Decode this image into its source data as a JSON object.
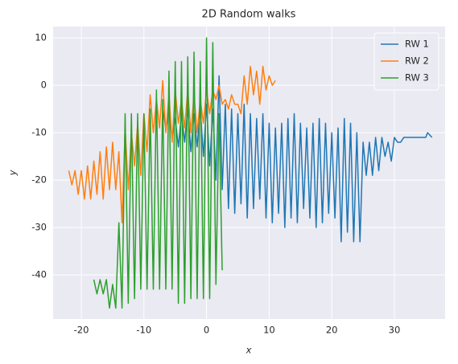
{
  "chart_data": {
    "type": "line",
    "title": "2D Random walks",
    "xlabel": "x",
    "ylabel": "y",
    "xlim": [
      -24.5,
      38.1
    ],
    "ylim": [
      -49.3,
      12.4
    ],
    "xticks": [
      -20,
      -10,
      0,
      10,
      20,
      30
    ],
    "yticks": [
      -40,
      -30,
      -20,
      -10,
      0,
      10
    ],
    "grid": true,
    "legend": "upper right",
    "series": [
      {
        "name": "RW 1",
        "color": "#1f77b4",
        "x": [
          -7,
          -6.5,
          -6,
          -5.5,
          -5,
          -4.5,
          -4,
          -3.5,
          -3,
          -2.5,
          -2,
          -1.5,
          -1,
          -0.5,
          0,
          0.5,
          1,
          1.5,
          2,
          2.5,
          3,
          3.5,
          4,
          4.5,
          5,
          5.5,
          6,
          6.5,
          7,
          7.5,
          8,
          8.5,
          9,
          9.5,
          10,
          10.5,
          11,
          11.5,
          12,
          12.5,
          13,
          13.5,
          14,
          14.5,
          15,
          15.5,
          16,
          16.5,
          17,
          17.5,
          18,
          18.5,
          19,
          19.5,
          20,
          20.5,
          21,
          21.5,
          22,
          22.5,
          23,
          23.5,
          24,
          24.5,
          25,
          25.5,
          26,
          26.5,
          27,
          27.5,
          28,
          28.5,
          29,
          29.5,
          30,
          30.5,
          31,
          31.5,
          32,
          33,
          34,
          35,
          35.3,
          36
        ],
        "values": [
          -5,
          -9,
          -6,
          -11,
          -7,
          -13,
          -6,
          -12,
          -5,
          -14,
          -6,
          -13,
          -5,
          -15,
          -4,
          -17,
          -5,
          -20,
          2,
          -22,
          -4,
          -26,
          -5,
          -27,
          -6,
          -25,
          -4,
          -28,
          -6,
          -26,
          -7,
          -24,
          -6,
          -28,
          -8,
          -29,
          -9,
          -27,
          -8,
          -30,
          -7,
          -28,
          -6,
          -29,
          -8,
          -26,
          -9,
          -28,
          -8,
          -30,
          -7,
          -29,
          -8,
          -27,
          -10,
          -28,
          -9,
          -33,
          -7,
          -31,
          -8,
          -33,
          -10,
          -33,
          -12,
          -19,
          -12,
          -19,
          -11,
          -18,
          -11,
          -15,
          -12,
          -16,
          -11,
          -12,
          -12,
          -11,
          -11,
          -11,
          -11,
          -11,
          -10,
          -11
        ]
      },
      {
        "name": "RW 2",
        "color": "#ff7f0e",
        "x": [
          -22,
          -21.5,
          -21,
          -20.5,
          -20,
          -19.5,
          -19,
          -18.5,
          -18,
          -17.5,
          -17,
          -16.5,
          -16,
          -15.5,
          -15,
          -14.5,
          -14,
          -13.5,
          -13,
          -12.5,
          -12,
          -11.5,
          -11,
          -10.5,
          -10,
          -9.5,
          -9,
          -8.5,
          -8,
          -7.5,
          -7,
          -6.5,
          -6,
          -5.5,
          -5,
          -4.5,
          -4,
          -3.5,
          -3,
          -2.5,
          -2,
          -1.5,
          -1,
          -0.5,
          0,
          0.5,
          1,
          1.5,
          2,
          2.5,
          3,
          3.5,
          4,
          4.5,
          5,
          5.5,
          6,
          6.5,
          7,
          7.5,
          8,
          8.5,
          9,
          9.5,
          10,
          10.5,
          11
        ],
        "values": [
          -18,
          -21,
          -18,
          -23,
          -18,
          -24,
          -17,
          -24,
          -16,
          -23,
          -14,
          -24,
          -13,
          -22,
          -12,
          -22,
          -14,
          -29,
          -9,
          -22,
          -10,
          -17,
          -8,
          -19,
          -6,
          -14,
          -2,
          -10,
          -3,
          -9,
          1,
          -10,
          -2,
          -12,
          -1,
          -8,
          -3,
          -9,
          -1,
          -10,
          -2,
          -10,
          -3,
          -8,
          -1,
          -6,
          -1,
          -3,
          0,
          -4,
          -3,
          -5,
          -2,
          -4,
          -4,
          -6,
          2,
          -4,
          4,
          -2,
          3,
          -4,
          4,
          -1,
          2,
          0,
          1
        ]
      },
      {
        "name": "RW 3",
        "color": "#2ca02c",
        "x": [
          -18,
          -17.5,
          -17,
          -16.5,
          -16,
          -15.5,
          -15,
          -14.5,
          -14,
          -13.5,
          -13,
          -12.5,
          -12,
          -11.5,
          -11,
          -10.5,
          -10,
          -9.5,
          -9,
          -8.5,
          -8,
          -7.5,
          -7,
          -6.5,
          -6,
          -5.5,
          -5,
          -4.5,
          -4,
          -3.5,
          -3,
          -2.5,
          -2,
          -1.5,
          -1,
          -0.5,
          0,
          0.5,
          1,
          1.5,
          2,
          2.5
        ],
        "values": [
          -41,
          -44,
          -41,
          -44,
          -41,
          -47,
          -42,
          -47,
          -29,
          -47,
          -6,
          -46,
          -6,
          -45,
          -6,
          -43,
          -6,
          -43,
          -5,
          -43,
          -1,
          -43,
          -3,
          -43,
          3,
          -43,
          5,
          -46,
          5,
          -46,
          6,
          -45,
          7,
          -45,
          5,
          -45,
          10,
          -45,
          9,
          -42,
          -6,
          -39
        ]
      }
    ]
  }
}
